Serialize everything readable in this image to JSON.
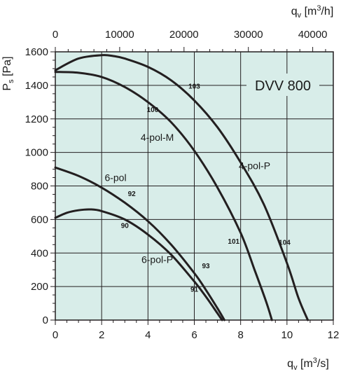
{
  "chart_data": {
    "type": "line",
    "title": "DVV 800",
    "xlabel": "qv [m3/s]",
    "x2label": "qv [m3/h]",
    "ylabel": "Ps [Pa]",
    "xlim": [
      0,
      12
    ],
    "ylim": [
      0,
      1600
    ],
    "x2lim": [
      0,
      43200
    ],
    "grid": true,
    "background_color": "#d8ede9",
    "line_color": "#231f20",
    "x_ticks": [
      0,
      2,
      4,
      6,
      8,
      10,
      12
    ],
    "x_tick_labels": [
      "0",
      "2",
      "4",
      "6",
      "8",
      "10",
      "12"
    ],
    "y_ticks": [
      0,
      200,
      400,
      600,
      800,
      1000,
      1200,
      1400,
      1600
    ],
    "y_tick_labels": [
      "0",
      "200",
      "400",
      "600",
      "800",
      "1000",
      "1200",
      "1400",
      "1600"
    ],
    "x2_ticks": [
      0,
      10000,
      20000,
      30000,
      40000
    ],
    "x2_tick_labels": [
      "0",
      "10000",
      "20000",
      "30000",
      "40000"
    ],
    "series": [
      {
        "name": "4-pol-P",
        "label_at": [
          8.6,
          900
        ],
        "x": [
          0,
          1,
          2,
          2.5,
          3,
          4,
          5,
          6,
          7,
          8,
          9,
          10,
          10.5,
          10.9
        ],
        "y": [
          1490,
          1560,
          1580,
          1575,
          1560,
          1510,
          1430,
          1310,
          1150,
          940,
          690,
          340,
          130,
          0
        ]
      },
      {
        "name": "4-pol-M",
        "label_at": [
          4.4,
          1070
        ],
        "x": [
          0,
          1,
          2,
          3,
          4,
          5,
          6,
          7,
          8,
          8.6,
          9.1,
          9.35
        ],
        "y": [
          1480,
          1475,
          1450,
          1390,
          1300,
          1180,
          1010,
          790,
          520,
          300,
          110,
          0
        ]
      },
      {
        "name": "6-pol",
        "label_at": [
          2.6,
          830
        ],
        "x": [
          0,
          1,
          2,
          3,
          4,
          5,
          6,
          6.5,
          7,
          7.3
        ],
        "y": [
          910,
          860,
          790,
          700,
          590,
          450,
          280,
          180,
          70,
          0
        ]
      },
      {
        "name": "6-pol-P",
        "label_at": [
          4.4,
          340
        ],
        "x": [
          0,
          0.5,
          1,
          1.5,
          2,
          3,
          4,
          5,
          6,
          6.5,
          7,
          7.2
        ],
        "y": [
          610,
          640,
          655,
          660,
          650,
          600,
          510,
          390,
          230,
          140,
          40,
          0
        ]
      }
    ],
    "annotations": [
      {
        "text": "103",
        "x": 6.0,
        "y": 1380
      },
      {
        "text": "100",
        "x": 4.2,
        "y": 1240
      },
      {
        "text": "92",
        "x": 3.3,
        "y": 740
      },
      {
        "text": "90",
        "x": 3.0,
        "y": 550
      },
      {
        "text": "101",
        "x": 7.7,
        "y": 455
      },
      {
        "text": "104",
        "x": 9.9,
        "y": 450
      },
      {
        "text": "93",
        "x": 6.5,
        "y": 310
      },
      {
        "text": "91",
        "x": 6.0,
        "y": 170
      }
    ]
  }
}
